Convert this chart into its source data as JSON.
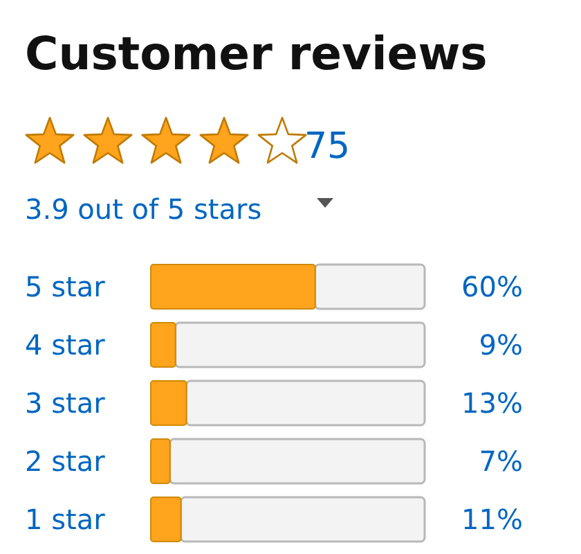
{
  "chart_data": {
    "type": "bar",
    "orientation": "horizontal",
    "title": "Customer reviews",
    "annotations": [
      "75",
      "3.9 out of 5 stars"
    ],
    "categories": [
      "5 star",
      "4 star",
      "3 star",
      "2 star",
      "1 star"
    ],
    "values": [
      60,
      9,
      13,
      7,
      11
    ],
    "value_labels": [
      "60%",
      "9%",
      "13%",
      "7%",
      "11%"
    ],
    "color": "#ffa41c",
    "xlim": [
      0,
      100
    ],
    "tick_labels": "y"
  }
}
